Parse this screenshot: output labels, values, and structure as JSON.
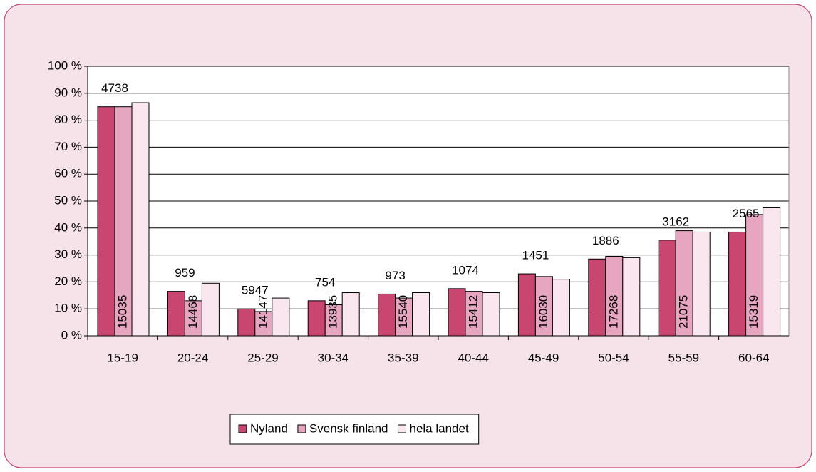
{
  "chart_data": {
    "type": "bar",
    "categories": [
      "15-19",
      "20-24",
      "25-29",
      "30-34",
      "35-39",
      "40-44",
      "45-49",
      "50-54",
      "55-59",
      "60-64"
    ],
    "series": [
      {
        "name": "Nyland",
        "color": "#c8466f",
        "values": [
          85,
          16.5,
          10,
          13,
          15.5,
          17.5,
          23,
          28.5,
          35.5,
          38.5
        ],
        "count_labels": [
          4738,
          959,
          5947,
          754,
          973,
          1074,
          1451,
          1886,
          3162,
          2565
        ]
      },
      {
        "name": "Svensk finland",
        "color": "#e7a6c0",
        "values": [
          85,
          13,
          9,
          11.5,
          14,
          16.5,
          22,
          29.5,
          39,
          45
        ],
        "count_labels": [
          15035,
          14468,
          14147,
          13935,
          15540,
          15412,
          16030,
          17268,
          21075,
          15319
        ]
      },
      {
        "name": "hela landet",
        "color": "#fae6ee",
        "values": [
          86.5,
          19.5,
          14,
          16,
          16,
          16,
          21,
          29,
          38.5,
          47.5
        ]
      }
    ],
    "ylim": [
      0,
      100
    ],
    "yticks": [
      {
        "value": 0,
        "label": "0 %"
      },
      {
        "value": 10,
        "label": "10 %"
      },
      {
        "value": 20,
        "label": "20 %"
      },
      {
        "value": 30,
        "label": "30 %"
      },
      {
        "value": 40,
        "label": "40 %"
      },
      {
        "value": 50,
        "label": "50 %"
      },
      {
        "value": 60,
        "label": "60 %"
      },
      {
        "value": 70,
        "label": "70 %"
      },
      {
        "value": 80,
        "label": "80 %"
      },
      {
        "value": 90,
        "label": "90 %"
      },
      {
        "value": 100,
        "label": "100 %"
      }
    ],
    "grid": true,
    "legend": "bottom"
  }
}
